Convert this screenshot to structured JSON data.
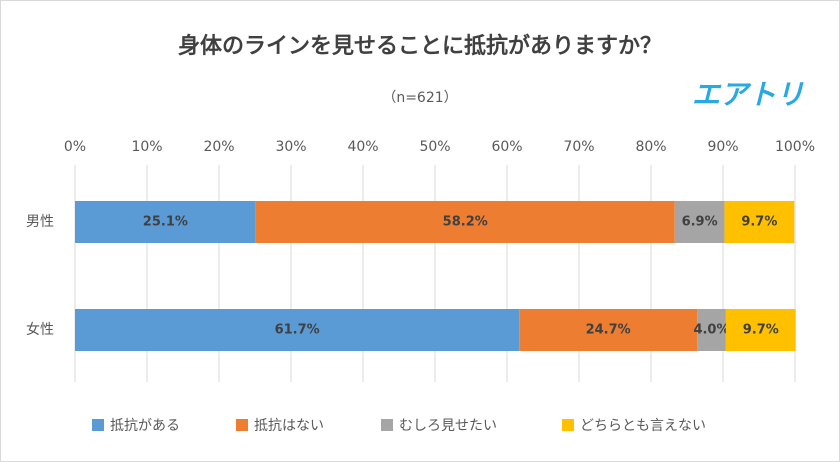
{
  "chart_data": {
    "type": "stacked-bar-horizontal",
    "title": "身体のラインを見せることに抵抗がありますか？",
    "subtitle": "（n=621）",
    "logo": "エアトリ",
    "categories": [
      "男性",
      "女性"
    ],
    "series": [
      {
        "name": "抵抗がある",
        "color": "#5b9bd5",
        "values": [
          25.1,
          61.7
        ],
        "value_labels": [
          "25.1%",
          "61.7%"
        ]
      },
      {
        "name": "抵抗はない",
        "color": "#ed7d31",
        "values": [
          58.2,
          24.7
        ],
        "value_labels": [
          "58.2%",
          "24.7%"
        ]
      },
      {
        "name": "むしろ見せたい",
        "color": "#a5a5a5",
        "values": [
          6.9,
          4.0
        ],
        "value_labels": [
          "6.9%",
          "4.0%"
        ]
      },
      {
        "name": "どちらとも言えない",
        "color": "#ffc000",
        "values": [
          9.7,
          9.7
        ],
        "value_labels": [
          "9.7%",
          "9.7%"
        ]
      }
    ],
    "xlim": [
      0,
      100
    ],
    "xticks": [
      {
        "value": 0,
        "label": "0%"
      },
      {
        "value": 10,
        "label": "10%"
      },
      {
        "value": 20,
        "label": "20%"
      },
      {
        "value": 30,
        "label": "30%"
      },
      {
        "value": 40,
        "label": "40%"
      },
      {
        "value": 50,
        "label": "50%"
      },
      {
        "value": 60,
        "label": "60%"
      },
      {
        "value": 70,
        "label": "70%"
      },
      {
        "value": 80,
        "label": "80%"
      },
      {
        "value": 90,
        "label": "90%"
      },
      {
        "value": 100,
        "label": "100%"
      }
    ],
    "grid": true,
    "legend": "bottom"
  }
}
